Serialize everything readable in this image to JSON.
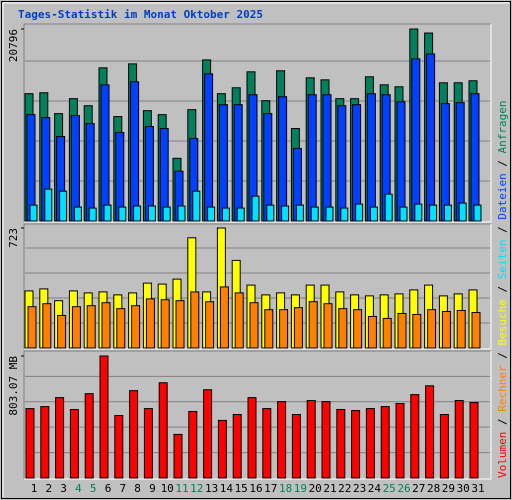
{
  "title": "Tages-Statistik im Monat Oktober 2025",
  "legend_separator": " / ",
  "chart_data": [
    {
      "type": "bar",
      "ylim": [
        0,
        20796
      ],
      "yticks": [
        20796
      ],
      "series": [
        {
          "name": "Anfragen",
          "color": "#00805c",
          "values": [
            13790,
            13890,
            11630,
            13250,
            12490,
            16590,
            11310,
            17020,
            11950,
            11520,
            6790,
            12060,
            17450,
            13790,
            14430,
            16160,
            13030,
            16270,
            10020,
            15510,
            15290,
            13250,
            13250,
            15620,
            14750,
            14540,
            20796,
            20360,
            14970,
            14970,
            15190
          ]
        },
        {
          "name": "Dateien",
          "color": "#0040ff",
          "values": [
            11520,
            11200,
            9150,
            11420,
            10550,
            14750,
            9590,
            15080,
            10230,
            10020,
            5390,
            8940,
            15940,
            12600,
            12600,
            13680,
            11630,
            13460,
            7860,
            13680,
            13680,
            12490,
            12600,
            13790,
            13680,
            12920,
            17560,
            18090,
            12710,
            12820,
            13790
          ]
        },
        {
          "name": "Seiten",
          "color": "#00e0ff",
          "values": [
            1720,
            3450,
            3230,
            1510,
            1400,
            1720,
            1510,
            1620,
            1620,
            1510,
            1620,
            3230,
            1510,
            1400,
            1400,
            2690,
            1720,
            1620,
            1720,
            1510,
            1510,
            1400,
            1830,
            1510,
            2910,
            1510,
            1830,
            1720,
            1720,
            1940,
            1720
          ]
        }
      ]
    },
    {
      "type": "bar",
      "ylim": [
        0,
        723
      ],
      "yticks": [
        723
      ],
      "series": [
        {
          "name": "Besuche",
          "color": "#ffff00",
          "values": [
            344,
            356,
            285,
            344,
            332,
            338,
            320,
            332,
            391,
            385,
            415,
            664,
            338,
            723,
            528,
            379,
            320,
            332,
            320,
            379,
            379,
            338,
            320,
            314,
            320,
            326,
            350,
            379,
            314,
            326,
            350
          ]
        },
        {
          "name": "Rechner",
          "color": "#ff8000",
          "values": [
            249,
            267,
            196,
            249,
            255,
            273,
            237,
            255,
            296,
            291,
            285,
            338,
            279,
            368,
            332,
            273,
            231,
            231,
            243,
            279,
            267,
            237,
            231,
            190,
            178,
            208,
            202,
            231,
            220,
            226,
            214
          ]
        }
      ]
    },
    {
      "type": "bar",
      "ylim": [
        0,
        803.07
      ],
      "yticks": [
        {
          "value": 803.07,
          "label": "803.07 MB"
        }
      ],
      "categories": [
        "1",
        "2",
        "3",
        "4",
        "5",
        "6",
        "7",
        "8",
        "9",
        "10",
        "11",
        "12",
        "13",
        "14",
        "15",
        "16",
        "17",
        "18",
        "19",
        "20",
        "21",
        "22",
        "23",
        "24",
        "25",
        "26",
        "27",
        "28",
        "29",
        "30",
        "31"
      ],
      "category_color": "#000000",
      "highlight_categories": [
        3,
        4,
        10,
        11,
        17,
        18,
        24,
        25
      ],
      "highlight_color": "#00805c",
      "series": [
        {
          "name": "Volumen",
          "color": "#ff0000",
          "values": [
            457,
            470,
            529,
            451,
            555,
            803.07,
            411,
            575,
            457,
            627,
            287,
            438,
            581,
            379,
            418,
            529,
            457,
            503,
            418,
            510,
            503,
            451,
            444,
            457,
            470,
            490,
            549,
            607,
            418,
            510,
            497
          ]
        }
      ]
    }
  ]
}
